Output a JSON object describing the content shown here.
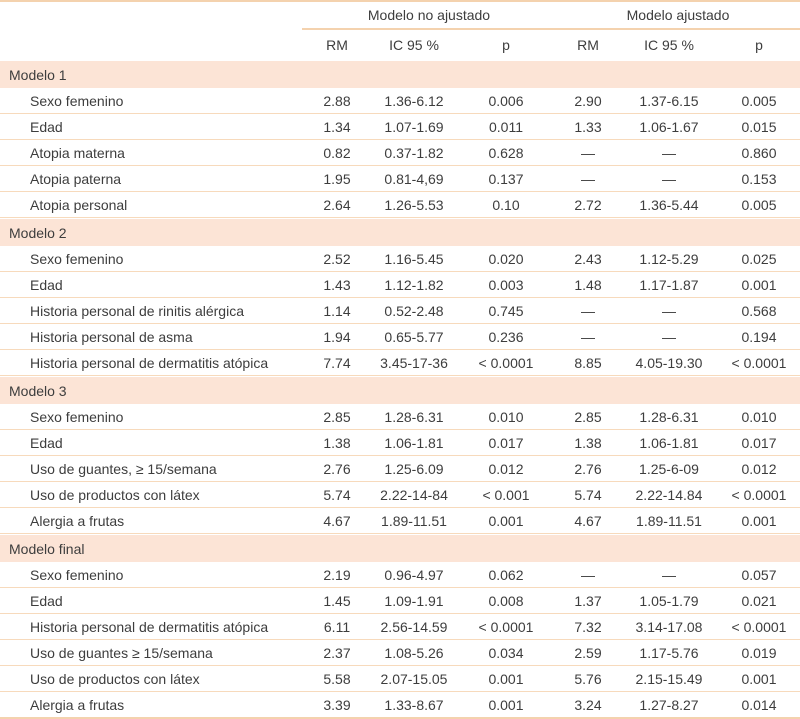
{
  "table": {
    "header": {
      "group1": "Modelo no ajustado",
      "group2": "Modelo ajustado",
      "sub": [
        "RM",
        "IC 95 %",
        "p"
      ]
    },
    "colors": {
      "section_band": "#fce4d6",
      "separator_line": "#f7dabc",
      "text": "#3d3d3d"
    },
    "sections": [
      {
        "title": "Modelo 1",
        "rows": [
          {
            "label": "Sexo femenino",
            "values": [
              "2.88",
              "1.36-6.12",
              "0.006",
              "2.90",
              "1.37-6.15",
              "0.005"
            ]
          },
          {
            "label": "Edad",
            "values": [
              "1.34",
              "1.07-1.69",
              "0.011",
              "1.33",
              "1.06-1.67",
              "0.015"
            ]
          },
          {
            "label": "Atopia materna",
            "values": [
              "0.82",
              "0.37-1.82",
              "0.628",
              "—",
              "—",
              "0.860"
            ]
          },
          {
            "label": "Atopia paterna",
            "values": [
              "1.95",
              "0.81-4,69",
              "0.137",
              "—",
              "—",
              "0.153"
            ]
          },
          {
            "label": "Atopia personal",
            "values": [
              "2.64",
              "1.26-5.53",
              "0.10",
              "2.72",
              "1.36-5.44",
              "0.005"
            ]
          }
        ]
      },
      {
        "title": "Modelo 2",
        "rows": [
          {
            "label": "Sexo femenino",
            "values": [
              "2.52",
              "1.16-5.45",
              "0.020",
              "2.43",
              "1.12-5.29",
              "0.025"
            ]
          },
          {
            "label": "Edad",
            "values": [
              "1.43",
              "1.12-1.82",
              "0.003",
              "1.48",
              "1.17-1.87",
              "0.001"
            ]
          },
          {
            "label": "Historia personal de rinitis alérgica",
            "values": [
              "1.14",
              "0.52-2.48",
              "0.745",
              "—",
              "—",
              "0.568"
            ]
          },
          {
            "label": "Historia personal de asma",
            "values": [
              "1.94",
              "0.65-5.77",
              "0.236",
              "—",
              "—",
              "0.194"
            ]
          },
          {
            "label": "Historia personal de dermatitis atópica",
            "values": [
              "7.74",
              "3.45-17-36",
              "< 0.0001",
              "8.85",
              "4.05-19.30",
              "< 0.0001"
            ]
          }
        ]
      },
      {
        "title": "Modelo 3",
        "rows": [
          {
            "label": "Sexo femenino",
            "values": [
              "2.85",
              "1.28-6.31",
              "0.010",
              "2.85",
              "1.28-6.31",
              "0.010"
            ]
          },
          {
            "label": "Edad",
            "values": [
              "1.38",
              "1.06-1.81",
              "0.017",
              "1.38",
              "1.06-1.81",
              "0.017"
            ]
          },
          {
            "label": "Uso de guantes, ≥ 15/semana",
            "values": [
              "2.76",
              "1.25-6.09",
              "0.012",
              "2.76",
              "1.25-6-09",
              "0.012"
            ]
          },
          {
            "label": "Uso de productos con látex",
            "values": [
              "5.74",
              "2.22-14-84",
              "< 0.001",
              "5.74",
              "2.22-14.84",
              "< 0.0001"
            ]
          },
          {
            "label": "Alergia a frutas",
            "values": [
              "4.67",
              "1.89-11.51",
              "0.001",
              "4.67",
              "1.89-11.51",
              "0.001"
            ]
          }
        ]
      },
      {
        "title": "Modelo final",
        "rows": [
          {
            "label": "Sexo femenino",
            "values": [
              "2.19",
              "0.96-4.97",
              "0.062",
              "—",
              "—",
              "0.057"
            ]
          },
          {
            "label": "Edad",
            "values": [
              "1.45",
              "1.09-1.91",
              "0.008",
              "1.37",
              "1.05-1.79",
              "0.021"
            ]
          },
          {
            "label": "Historia personal de dermatitis atópica",
            "values": [
              "6.11",
              "2.56-14.59",
              "< 0.0001",
              "7.32",
              "3.14-17.08",
              "< 0.0001"
            ]
          },
          {
            "label": "Uso de guantes ≥ 15/semana",
            "values": [
              "2.37",
              "1.08-5.26",
              "0.034",
              "2.59",
              "1.17-5.76",
              "0.019"
            ]
          },
          {
            "label": "Uso de productos con látex",
            "values": [
              "5.58",
              "2.07-15.05",
              "0.001",
              "5.76",
              "2.15-15.49",
              "0.001"
            ]
          },
          {
            "label": "Alergia a frutas",
            "values": [
              "3.39",
              "1.33-8.67",
              "0.001",
              "3.24",
              "1.27-8.27",
              "0.014"
            ]
          }
        ]
      }
    ]
  }
}
